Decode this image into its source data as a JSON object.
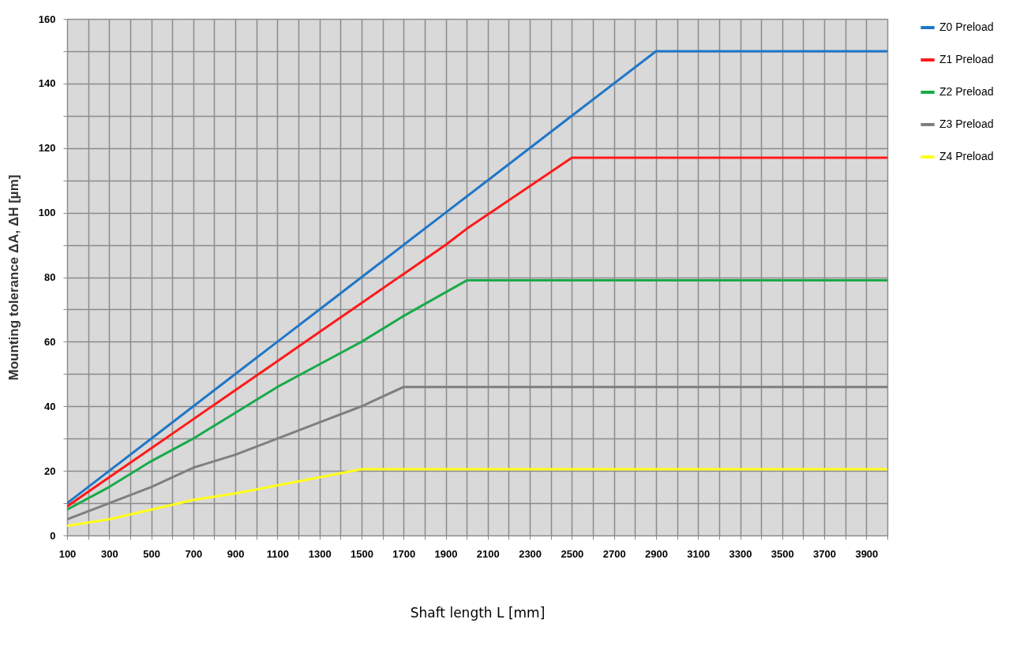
{
  "chart_data": {
    "type": "line",
    "xlabel": "Shaft length L [mm]",
    "ylabel": "Mounting tolerance ΔA, ΔH [µm]",
    "xlim": [
      100,
      4000
    ],
    "ylim": [
      0,
      160
    ],
    "xticks": [
      100,
      {
        "value": 200,
        "label": null
      },
      300,
      {
        "value": 400,
        "label": null
      },
      500,
      {
        "value": 600,
        "label": null
      },
      700,
      {
        "value": 800,
        "label": null
      },
      900,
      {
        "value": 1000,
        "label": null
      },
      1100,
      {
        "value": 1200,
        "label": null
      },
      1300,
      {
        "value": 1400,
        "label": null
      },
      1500,
      {
        "value": 1600,
        "label": null
      },
      1700,
      {
        "value": 1800,
        "label": null
      },
      1900,
      {
        "value": 2000,
        "label": null
      },
      2100,
      {
        "value": 2200,
        "label": null
      },
      2300,
      {
        "value": 2400,
        "label": null
      },
      2500,
      {
        "value": 2600,
        "label": null
      },
      2700,
      {
        "value": 2800,
        "label": null
      },
      2900,
      {
        "value": 3000,
        "label": null
      },
      3100,
      {
        "value": 3200,
        "label": null
      },
      3300,
      {
        "value": 3400,
        "label": null
      },
      3500,
      {
        "value": 3600,
        "label": null
      },
      3700,
      {
        "value": 3800,
        "label": null
      },
      3900,
      {
        "value": 4000,
        "label": null
      }
    ],
    "yticks": [
      0,
      {
        "value": 10,
        "label": null
      },
      20,
      {
        "value": 30,
        "label": null
      },
      40,
      {
        "value": 50,
        "label": null
      },
      60,
      {
        "value": 70,
        "label": null
      },
      80,
      {
        "value": 90,
        "label": null
      },
      100,
      {
        "value": 110,
        "label": null
      },
      120,
      {
        "value": 130,
        "label": null
      },
      140,
      {
        "value": 150,
        "label": null
      },
      160
    ],
    "grid": true,
    "legend": "right",
    "series": [
      {
        "name": "Z0 Preload",
        "color": "#1f77c8",
        "x": [
          100,
          300,
          500,
          700,
          900,
          1100,
          1300,
          1500,
          1700,
          1900,
          2100,
          2300,
          2500,
          2900,
          4000
        ],
        "values": [
          10,
          20,
          30,
          40,
          50,
          60,
          70,
          80,
          90,
          100,
          110,
          120,
          130,
          150,
          150
        ]
      },
      {
        "name": "Z1 Preload",
        "color": "#ff1a1a",
        "x": [
          100,
          300,
          500,
          700,
          900,
          1100,
          1300,
          1500,
          1700,
          1900,
          2000,
          2500,
          4000
        ],
        "values": [
          9,
          18,
          27,
          36,
          45,
          54,
          63,
          72,
          81,
          90,
          95,
          117,
          117
        ]
      },
      {
        "name": "Z2 Preload",
        "color": "#1aaa4a",
        "x": [
          100,
          300,
          500,
          700,
          900,
          1100,
          1300,
          1500,
          1700,
          2000,
          4000
        ],
        "values": [
          8,
          15,
          23,
          30,
          38,
          46,
          53,
          60,
          68,
          79,
          79
        ]
      },
      {
        "name": "Z3 Preload",
        "color": "#7f7f7f",
        "x": [
          100,
          300,
          500,
          700,
          900,
          1100,
          1300,
          1500,
          1700,
          4000
        ],
        "values": [
          5,
          10,
          15,
          21,
          25,
          30,
          35,
          40,
          46,
          46
        ]
      },
      {
        "name": "Z4 Preload",
        "color": "#ffff1a",
        "x": [
          100,
          300,
          500,
          700,
          900,
          1100,
          1300,
          1500,
          4000
        ],
        "values": [
          3,
          5,
          8,
          11,
          13,
          15.5,
          18,
          20.5,
          20.5
        ]
      }
    ]
  }
}
